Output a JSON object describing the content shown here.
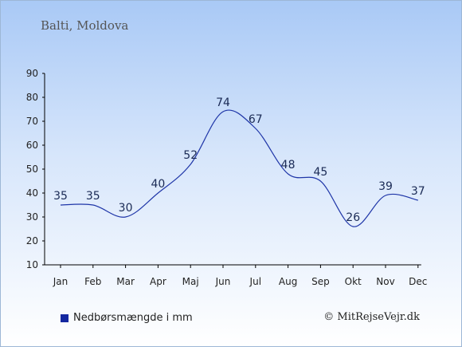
{
  "title": "Balti, Moldova",
  "legend_label": "Nedbørsmængde i mm",
  "credit": "© MitRejseVejr.dk",
  "colors": {
    "line": "#1f36a8",
    "legend": "#1428a0",
    "axis": "#000000"
  },
  "chart_data": {
    "type": "line",
    "title": "Balti, Moldova",
    "categories": [
      "Jan",
      "Feb",
      "Mar",
      "Apr",
      "Maj",
      "Jun",
      "Jul",
      "Aug",
      "Sep",
      "Okt",
      "Nov",
      "Dec"
    ],
    "series": [
      {
        "name": "Nedbørsmængde i mm",
        "values": [
          35,
          35,
          30,
          40,
          52,
          74,
          67,
          48,
          45,
          26,
          39,
          37
        ]
      }
    ],
    "yticks": [
      10,
      20,
      30,
      40,
      50,
      60,
      70,
      80,
      90
    ],
    "ylim": [
      10,
      90
    ],
    "grid": false,
    "legend": "bottom-left"
  }
}
